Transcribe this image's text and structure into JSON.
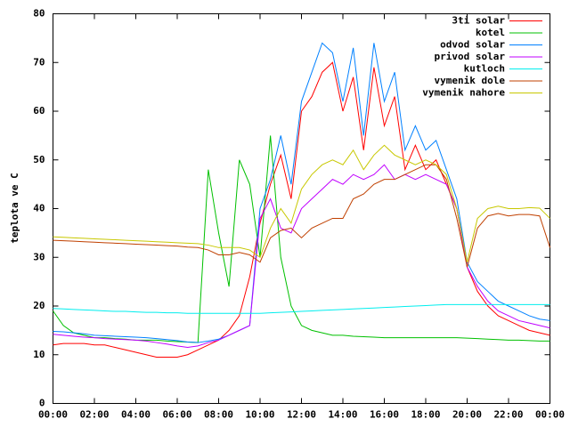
{
  "chart_data": {
    "type": "line",
    "ylabel": "teplota ve C",
    "xlim": [
      0,
      24
    ],
    "xticks": [
      {
        "value": 0,
        "label": "00:00"
      },
      {
        "value": 2,
        "label": "02:00"
      },
      {
        "value": 4,
        "label": "04:00"
      },
      {
        "value": 6,
        "label": "06:00"
      },
      {
        "value": 8,
        "label": "08:00"
      },
      {
        "value": 10,
        "label": "10:00"
      },
      {
        "value": 12,
        "label": "12:00"
      },
      {
        "value": 14,
        "label": "14:00"
      },
      {
        "value": 16,
        "label": "16:00"
      },
      {
        "value": 18,
        "label": "18:00"
      },
      {
        "value": 20,
        "label": "20:00"
      },
      {
        "value": 22,
        "label": "22:00"
      },
      {
        "value": 24,
        "label": "00:00"
      }
    ],
    "ylim": [
      0,
      80
    ],
    "yticks": [
      0,
      10,
      20,
      30,
      40,
      50,
      60,
      70,
      80
    ],
    "grid": false,
    "legend": "top-right",
    "x": [
      0,
      0.5,
      1,
      1.5,
      2,
      2.5,
      3,
      3.5,
      4,
      4.5,
      5,
      5.5,
      6,
      6.5,
      7,
      7.5,
      8,
      8.5,
      9,
      9.5,
      10,
      10.5,
      11,
      11.5,
      12,
      12.5,
      13,
      13.5,
      14,
      14.5,
      15,
      15.5,
      16,
      16.5,
      17,
      17.5,
      18,
      18.5,
      19,
      19.5,
      20,
      20.5,
      21,
      21.5,
      22,
      22.5,
      23,
      23.5,
      24
    ],
    "series": [
      {
        "name": "3ti solar",
        "color": "#ff0000",
        "values": [
          12,
          12.3,
          12.3,
          12.3,
          12,
          12,
          11.5,
          11,
          10.5,
          10,
          9.5,
          9.5,
          9.5,
          10,
          11,
          12,
          13,
          15,
          18,
          26,
          37,
          45,
          51,
          42,
          60,
          63,
          68,
          70,
          60,
          67,
          52,
          69,
          57,
          63,
          48,
          53,
          48,
          50,
          45,
          40,
          28,
          23,
          20,
          18,
          17,
          16,
          15,
          14.5,
          14
        ]
      },
      {
        "name": "kotel",
        "color": "#00c000",
        "values": [
          19,
          16,
          14.5,
          14,
          13.5,
          13.5,
          13.3,
          13.2,
          13,
          13,
          13,
          12.8,
          12.7,
          12.6,
          12.5,
          48,
          35,
          24,
          50,
          45,
          30,
          55,
          30,
          20,
          16,
          15,
          14.5,
          14,
          14,
          13.8,
          13.7,
          13.6,
          13.5,
          13.5,
          13.5,
          13.5,
          13.5,
          13.5,
          13.5,
          13.5,
          13.4,
          13.3,
          13.2,
          13.1,
          13,
          13,
          12.9,
          12.8,
          12.8
        ]
      },
      {
        "name": "odvod solar",
        "color": "#0080ff",
        "values": [
          14.8,
          14.7,
          14.5,
          14.3,
          14,
          13.9,
          13.8,
          13.7,
          13.6,
          13.5,
          13.3,
          13.1,
          12.9,
          12.6,
          12.5,
          12.8,
          13.2,
          14,
          15,
          16,
          40,
          46,
          55,
          45,
          62,
          68,
          74,
          72,
          62,
          73,
          55,
          74,
          62,
          68,
          52,
          57,
          52,
          54,
          48,
          42,
          29,
          25,
          23,
          21,
          20,
          19,
          18,
          17.3,
          17
        ]
      },
      {
        "name": "privod solar",
        "color": "#c000ff",
        "values": [
          14.2,
          14,
          13.8,
          13.6,
          13.5,
          13.3,
          13.2,
          13.1,
          13,
          12.8,
          12.5,
          12.2,
          11.8,
          11.5,
          11.8,
          12.5,
          13,
          14,
          15,
          16,
          38,
          42,
          36,
          35,
          40,
          42,
          44,
          46,
          45,
          47,
          46,
          47,
          49,
          46,
          47,
          46,
          47,
          46,
          45,
          40,
          28,
          24,
          21,
          19,
          18,
          17,
          16.5,
          16,
          15.5
        ]
      },
      {
        "name": "kutloch",
        "color": "#00eeee",
        "values": [
          19.5,
          19.4,
          19.3,
          19.2,
          19.1,
          19,
          18.9,
          18.9,
          18.8,
          18.7,
          18.7,
          18.6,
          18.6,
          18.5,
          18.5,
          18.5,
          18.5,
          18.5,
          18.5,
          18.5,
          18.5,
          18.6,
          18.7,
          18.8,
          18.9,
          19,
          19.1,
          19.2,
          19.3,
          19.4,
          19.5,
          19.6,
          19.7,
          19.8,
          19.9,
          20,
          20.1,
          20.2,
          20.3,
          20.3,
          20.3,
          20.3,
          20.3,
          20.3,
          20.3,
          20.3,
          20.3,
          20.3,
          20.3
        ]
      },
      {
        "name": "vymenik dole",
        "color": "#c04000",
        "values": [
          33.5,
          33.4,
          33.3,
          33.2,
          33.1,
          33,
          32.9,
          32.8,
          32.7,
          32.6,
          32.5,
          32.4,
          32.3,
          32.1,
          32,
          31.5,
          30.5,
          30.5,
          31,
          30.5,
          29,
          34,
          35.5,
          36,
          34,
          36,
          37,
          38,
          38,
          42,
          43,
          45,
          46,
          46,
          47,
          48,
          49,
          49,
          46,
          38,
          28,
          36,
          38.5,
          39,
          38.5,
          38.8,
          38.8,
          38.5,
          32
        ]
      },
      {
        "name": "vymenik nahore",
        "color": "#c8c800",
        "values": [
          34.2,
          34.1,
          34,
          33.9,
          33.8,
          33.7,
          33.6,
          33.5,
          33.4,
          33.3,
          33.2,
          33.1,
          33,
          32.9,
          32.8,
          32.5,
          32,
          32,
          32,
          31.5,
          30,
          36,
          40,
          37,
          44,
          47,
          49,
          50,
          49,
          52,
          48,
          51,
          53,
          51,
          50,
          49,
          50,
          49,
          47,
          40,
          29,
          38,
          40,
          40.5,
          40,
          40,
          40.2,
          40.1,
          38
        ]
      }
    ]
  }
}
